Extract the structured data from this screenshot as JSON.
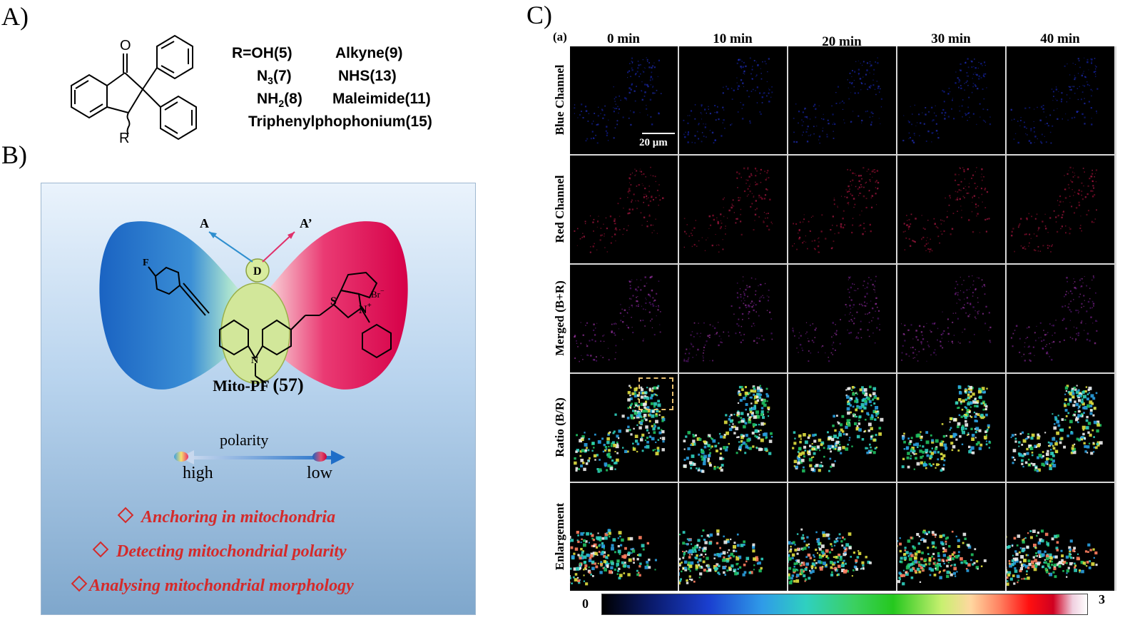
{
  "panels": {
    "a": "A)",
    "b": "B)",
    "c": "C)"
  },
  "panel_a": {
    "substituents": {
      "r1": "R=OH(5)",
      "r2_base": "N",
      "r2_sub": "3",
      "r2_tail": "(7)",
      "r3_base": "NH",
      "r3_sub": "2",
      "r3_tail": "(8)",
      "r4": "Alkyne(9)",
      "r5": "NHS(13)",
      "r6": "Maleimide(11)",
      "r7": "Triphenylphophonium(15)"
    },
    "atoms": {
      "oxygen": "O",
      "r_group": "R"
    }
  },
  "panel_b": {
    "probe_name": "Mito-PF",
    "probe_number": "(57)",
    "labels": {
      "acceptor1": "A",
      "acceptor2": "A’",
      "donor": "D",
      "fluorine": "F",
      "sulfur": "S",
      "nitrogen": "N",
      "nitrogen_charge": "+",
      "bromide": "Br",
      "bromide_charge": "−",
      "carbazole_n": "N"
    },
    "polarity": {
      "title": "polarity",
      "high": "high",
      "low": "low"
    },
    "features": [
      "Anchoring in mitochondria",
      "Detecting mitochondrial polarity",
      "Analysing mitochondrial morphology"
    ],
    "colors": {
      "blue_lobe": "#1f6ec8",
      "red_lobe": "#e0004d",
      "center": "#cde58a",
      "feature_text": "#d42a2a"
    }
  },
  "panel_c": {
    "sub_label": "(a)",
    "time_points": [
      "0 min",
      "10 min",
      "20 min",
      "30 min",
      "40 min"
    ],
    "channels": [
      "Blue Channel",
      "Red Channel",
      "Merged (B+R)",
      "Ratio (B/R)",
      "Enlargement"
    ],
    "scale_bar": "20 μm",
    "colorbar": {
      "min": "0",
      "max": "3"
    }
  }
}
